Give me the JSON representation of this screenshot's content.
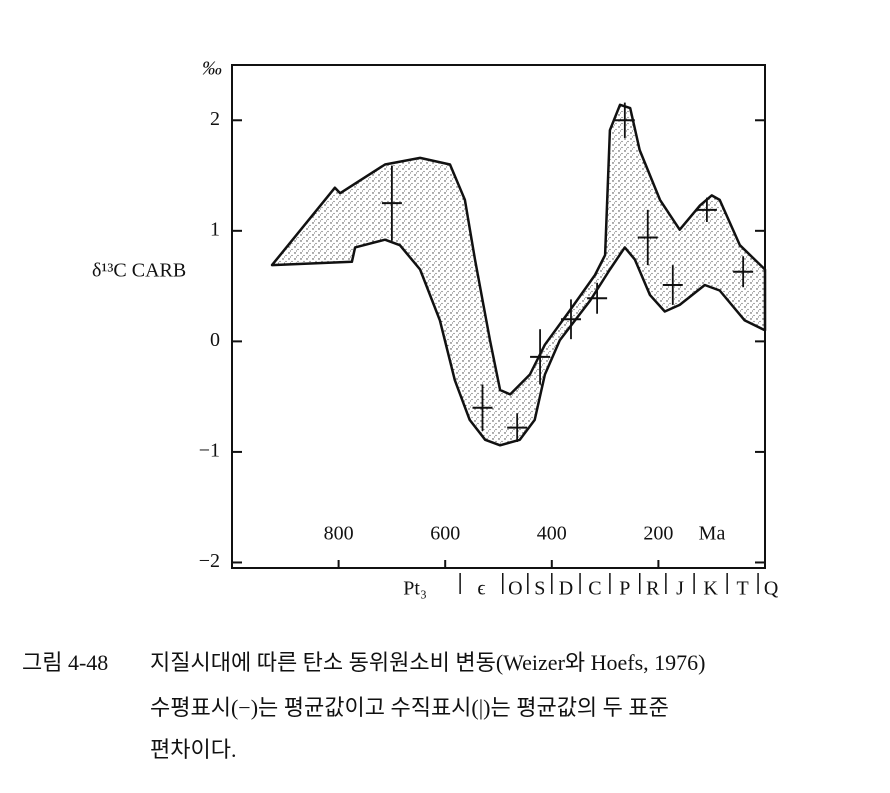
{
  "chart_data": {
    "type": "band",
    "y_unit": "‰",
    "y_label": "δ¹³C CARB",
    "x_label": "Ma",
    "xlim": [
      1000,
      0
    ],
    "xticks": [
      800,
      600,
      400,
      200
    ],
    "ylim": [
      -2.05,
      2.5
    ],
    "yticks": [
      {
        "value": -2,
        "label": "−2"
      },
      {
        "value": -1,
        "label": "−1"
      },
      0,
      1,
      2
    ],
    "band": {
      "x": [
        925,
        807,
        797,
        713,
        647,
        591,
        563,
        544,
        516,
        497,
        478,
        441,
        413,
        366,
        319,
        300,
        291,
        272,
        253,
        235,
        197,
        160,
        122,
        100,
        85,
        47,
        0,
        0,
        38,
        85,
        113,
        160,
        188,
        216,
        244,
        263,
        291,
        328,
        385,
        413,
        432,
        460,
        497,
        525,
        554,
        582,
        610,
        647,
        685,
        713,
        769,
        775
      ],
      "y": [
        0.69,
        1.39,
        1.34,
        1.6,
        1.66,
        1.6,
        1.28,
        0.74,
        0.01,
        -0.44,
        -0.48,
        -0.3,
        -0.03,
        0.28,
        0.6,
        0.78,
        1.91,
        2.14,
        2.11,
        1.73,
        1.28,
        1.01,
        1.23,
        1.32,
        1.28,
        0.87,
        0.65,
        0.1,
        0.19,
        0.46,
        0.51,
        0.33,
        0.27,
        0.42,
        0.74,
        0.85,
        0.65,
        0.37,
        0.01,
        -0.3,
        -0.71,
        -0.89,
        -0.94,
        -0.89,
        -0.71,
        -0.35,
        0.19,
        0.65,
        0.87,
        0.92,
        0.85,
        0.72
      ]
    },
    "means": {
      "x": [
        700,
        530,
        465,
        422,
        364,
        315,
        263,
        220,
        173,
        109,
        41
      ],
      "values": [
        1.25,
        -0.6,
        -0.78,
        -0.14,
        0.2,
        0.39,
        2.0,
        0.94,
        0.51,
        1.19,
        0.63
      ],
      "errors": [
        0.34,
        0.21,
        0.13,
        0.25,
        0.18,
        0.14,
        0.16,
        0.25,
        0.18,
        0.11,
        0.14
      ]
    },
    "periods": {
      "labels": [
        "Pt₃",
        "ϵ",
        "O",
        "S",
        "D",
        "C",
        "P",
        "R",
        "J",
        "K",
        "T",
        "Q"
      ],
      "boundaries": [
        572,
        492,
        445,
        400,
        347,
        291,
        235,
        186,
        133,
        71,
        13
      ]
    },
    "caption": {
      "label": "그림 4-48",
      "lines": [
        "지질시대에 따른 탄소 동위원소비 변동(Weizer와 Hoefs, 1976)",
        "수평표시(−)는 평균값이고 수직표시(|)는 평균값의 두 표준",
        "편차이다."
      ]
    }
  }
}
